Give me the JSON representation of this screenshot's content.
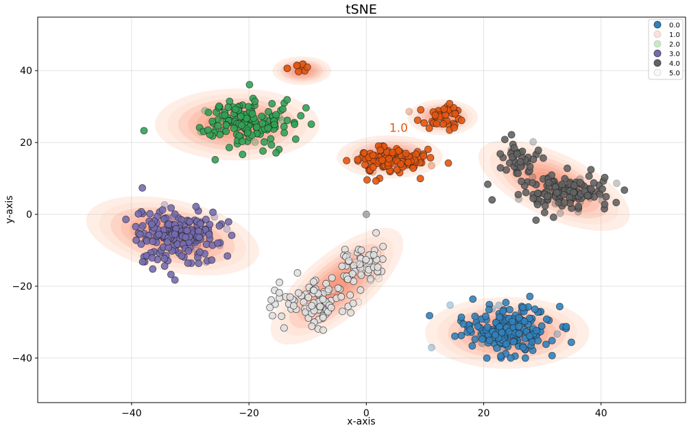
{
  "chart_data": {
    "type": "scatter",
    "title": "tSNE",
    "xlabel": "x-axis",
    "ylabel": "y-axis",
    "xlim": [
      -56,
      54.4
    ],
    "ylim": [
      -52.4,
      54.9
    ],
    "xticks": [
      -40,
      -20,
      0,
      20,
      40
    ],
    "yticks": [
      -40,
      -20,
      0,
      20,
      40
    ],
    "xtick_labels": [
      "−40",
      "−20",
      "0",
      "20",
      "40"
    ],
    "ytick_labels": [
      "−40",
      "−20",
      "0",
      "20",
      "40"
    ],
    "grid": true,
    "legend_placement": "top-right",
    "density_overlay": "kde-contours-reds",
    "annotation": {
      "text": "1.0",
      "x": 5.5,
      "y": 23,
      "color": "#e6550d"
    },
    "series": [
      {
        "name": "0.0",
        "color": "#3182bd",
        "clusters": [
          {
            "cx": 24,
            "cy": -32,
            "sx": 3.8,
            "sy": 3.3,
            "n": 220
          }
        ]
      },
      {
        "name": "1.0",
        "color": "#e6550d",
        "legend_color": "#fde0dd",
        "clusters": [
          {
            "cx": 3.5,
            "cy": 15,
            "sx": 3.2,
            "sy": 1.9,
            "n": 130
          },
          {
            "cx": 13,
            "cy": 27,
            "sx": 2.0,
            "sy": 1.6,
            "n": 45
          },
          {
            "cx": -11,
            "cy": 41,
            "sx": 1.2,
            "sy": 0.6,
            "n": 10
          }
        ]
      },
      {
        "name": "2.0",
        "color": "#31a354",
        "legend_color": "#c7e9c0",
        "clusters": [
          {
            "cx": -21,
            "cy": 26,
            "sx": 4.2,
            "sy": 3.2,
            "n": 170
          }
        ]
      },
      {
        "name": "3.0",
        "color": "#756bb1",
        "clusters": [
          {
            "cx": -32,
            "cy": -6,
            "sx": 4.0,
            "sy": 3.8,
            "n": 200
          }
        ]
      },
      {
        "name": "4.0",
        "color": "#636363",
        "clusters": [
          {
            "cx": 34,
            "cy": 6,
            "sx": 4.0,
            "sy": 2.6,
            "n": 140
          },
          {
            "cx": 26,
            "cy": 15,
            "sx": 2.2,
            "sy": 2.6,
            "n": 45
          }
        ]
      },
      {
        "name": "5.0",
        "color": "#e0e0e0",
        "legend_color": "#f7f7f7",
        "clusters": [
          {
            "cx": -8,
            "cy": -24,
            "sx": 3.2,
            "sy": 3.2,
            "n": 100
          },
          {
            "cx": -1,
            "cy": -14,
            "sx": 2.0,
            "sy": 2.6,
            "n": 60
          }
        ]
      }
    ],
    "outliers": [
      {
        "x": 0,
        "y": 0,
        "series": "4.0"
      }
    ],
    "density_blobs": [
      {
        "cx": 24,
        "cy": -33,
        "rx": 14,
        "ry": 10,
        "rot": 0
      },
      {
        "cx": 32,
        "cy": 8,
        "rx": 14,
        "ry": 9,
        "rot": -25
      },
      {
        "cx": -22,
        "cy": 25,
        "rx": 14,
        "ry": 10,
        "rot": 0
      },
      {
        "cx": -33,
        "cy": -6,
        "rx": 15,
        "ry": 10,
        "rot": -12
      },
      {
        "cx": -5,
        "cy": -20,
        "rx": 14,
        "ry": 9,
        "rot": 40
      },
      {
        "cx": 4,
        "cy": 16,
        "rx": 9,
        "ry": 6,
        "rot": 0
      },
      {
        "cx": 13,
        "cy": 27,
        "rx": 6,
        "ry": 5,
        "rot": 0
      },
      {
        "cx": -11,
        "cy": 40,
        "rx": 5,
        "ry": 4,
        "rot": 0
      }
    ]
  }
}
